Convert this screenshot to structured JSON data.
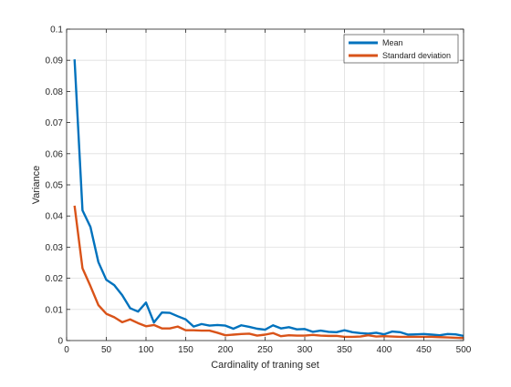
{
  "chart_data": {
    "type": "line",
    "title": "",
    "xlabel": "Cardinality of traning set",
    "ylabel": "Variance",
    "xlim": [
      0,
      500
    ],
    "ylim": [
      0,
      0.1
    ],
    "xticks": [
      0,
      50,
      100,
      150,
      200,
      250,
      300,
      350,
      400,
      450,
      500
    ],
    "yticks": [
      0,
      0.01,
      0.02,
      0.03,
      0.04,
      0.05,
      0.06,
      0.07,
      0.08,
      0.09,
      0.1
    ],
    "xtick_labels": [
      "0",
      "50",
      "100",
      "150",
      "200",
      "250",
      "300",
      "350",
      "400",
      "450",
      "500"
    ],
    "ytick_labels": [
      "0",
      "0.01",
      "0.02",
      "0.03",
      "0.04",
      "0.05",
      "0.06",
      "0.07",
      "0.08",
      "0.09",
      "0.1"
    ],
    "grid": true,
    "legend_position": "top-right",
    "x": [
      10,
      20,
      30,
      40,
      50,
      60,
      70,
      80,
      90,
      100,
      110,
      120,
      130,
      140,
      150,
      160,
      170,
      180,
      190,
      200,
      210,
      220,
      230,
      240,
      250,
      260,
      270,
      280,
      290,
      300,
      310,
      320,
      330,
      340,
      350,
      360,
      370,
      380,
      390,
      400,
      410,
      420,
      430,
      440,
      450,
      460,
      470,
      480,
      490,
      500
    ],
    "series": [
      {
        "name": "Mean",
        "color": "#0072BD",
        "values": [
          0.0903,
          0.0418,
          0.0365,
          0.0252,
          0.0195,
          0.0178,
          0.0146,
          0.0104,
          0.0093,
          0.0122,
          0.0058,
          0.009,
          0.0089,
          0.0078,
          0.0068,
          0.0045,
          0.0053,
          0.0048,
          0.005,
          0.0048,
          0.0038,
          0.0049,
          0.0044,
          0.0038,
          0.0035,
          0.0049,
          0.0039,
          0.0043,
          0.0036,
          0.0037,
          0.0028,
          0.0032,
          0.0028,
          0.0027,
          0.0033,
          0.0027,
          0.0024,
          0.0022,
          0.0025,
          0.002,
          0.0029,
          0.0027,
          0.0019,
          0.002,
          0.0021,
          0.0019,
          0.0017,
          0.0021,
          0.002,
          0.0015
        ]
      },
      {
        "name": "Standard deviation",
        "color": "#D95319",
        "values": [
          0.0433,
          0.0232,
          0.0175,
          0.0114,
          0.0086,
          0.0075,
          0.0059,
          0.0068,
          0.0056,
          0.0046,
          0.005,
          0.0039,
          0.0039,
          0.0045,
          0.0033,
          0.0033,
          0.0032,
          0.0032,
          0.0025,
          0.0017,
          0.0019,
          0.0021,
          0.0022,
          0.0016,
          0.0019,
          0.0024,
          0.0014,
          0.0017,
          0.0016,
          0.0016,
          0.0018,
          0.0016,
          0.0015,
          0.0015,
          0.0012,
          0.0012,
          0.0013,
          0.0017,
          0.0013,
          0.0014,
          0.0013,
          0.0012,
          0.0012,
          0.0012,
          0.0012,
          0.0012,
          0.0011,
          0.001,
          0.0009,
          0.0008
        ]
      }
    ]
  }
}
